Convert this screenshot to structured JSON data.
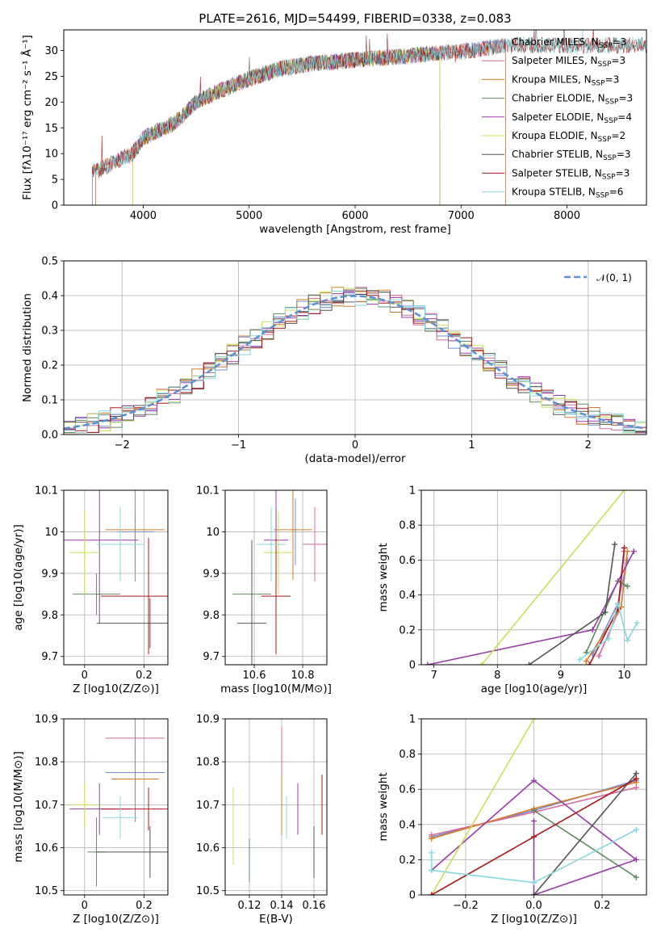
{
  "chart_data": [
    {
      "id": "spectrum",
      "type": "line",
      "title": "PLATE=2616, MJD=54499, FIBERID=0338, z=0.083",
      "xlabel": "wavelength [Angstrom, rest frame]",
      "ylabel": "Flux [fλ10⁻¹⁷ erg cm⁻² s⁻¹ Å⁻¹]",
      "xlim": [
        3250,
        8750
      ],
      "ylim": [
        0,
        34
      ],
      "xticks": [
        4000,
        5000,
        6000,
        7000,
        8000
      ],
      "yticks": [
        0,
        5,
        10,
        15,
        20,
        25,
        30
      ],
      "grid": false,
      "legend_position": "top-right",
      "continuum": {
        "x": [
          3550,
          3700,
          3900,
          4000,
          4100,
          4300,
          4500,
          4700,
          5000,
          5300,
          5600,
          5900,
          6200,
          6500,
          6800,
          7100,
          7400
        ],
        "y": [
          6.5,
          8,
          10,
          13,
          14,
          16,
          20,
          22,
          24.5,
          26.5,
          27.5,
          28,
          28.5,
          29,
          29.5,
          30,
          31
        ]
      },
      "series": [
        {
          "name": "Chabrier MILES, N_SSP=3",
          "color": "#6f8fd8",
          "range": [
            3550,
            7420
          ]
        },
        {
          "name": "Salpeter MILES, N_SSP=3",
          "color": "#d66a9e",
          "range": [
            3550,
            7420
          ]
        },
        {
          "name": "Kroupa MILES, N_SSP=3",
          "color": "#d47b2a",
          "range": [
            3550,
            7420
          ]
        },
        {
          "name": "Chabrier ELODIE, N_SSP=3",
          "color": "#5f8a5f",
          "range": [
            3900,
            6800
          ]
        },
        {
          "name": "Salpeter ELODIE, N_SSP=4",
          "color": "#9a3aa8",
          "range": [
            3900,
            6800
          ]
        },
        {
          "name": "Kroupa ELODIE, N_SSP=2",
          "color": "#c8df5a",
          "range": [
            3900,
            6800
          ]
        },
        {
          "name": "Chabrier STELIB, N_SSP=3",
          "color": "#555555",
          "range": [
            3520,
            8750
          ]
        },
        {
          "name": "Salpeter STELIB, N_SSP=3",
          "color": "#a8181d",
          "range": [
            3520,
            8750
          ]
        },
        {
          "name": "Kroupa STELIB, N_SSP=6",
          "color": "#86d8de",
          "range": [
            3520,
            8750
          ]
        }
      ]
    },
    {
      "id": "residuals",
      "type": "histogram",
      "xlabel": "(data-model)/error",
      "ylabel": "Normed distribution",
      "xlim": [
        -2.5,
        2.5
      ],
      "ylim": [
        0,
        0.5
      ],
      "xticks": [
        -2,
        -1,
        0,
        1,
        2
      ],
      "xtick_labels": [
        "−2",
        "−1",
        "0",
        "1",
        "2"
      ],
      "yticks": [
        0.0,
        0.1,
        0.2,
        0.3,
        0.4,
        0.5
      ],
      "ytick_labels": [
        "0.0",
        "0.1",
        "0.2",
        "0.3",
        "0.4",
        "0.5"
      ],
      "grid": true,
      "bin_width": 0.1,
      "reference": {
        "label": "𝒩(0, 1)",
        "color": "#5a8fd6",
        "mean": 0,
        "sigma": 1
      },
      "legend_position": "top-right"
    },
    {
      "id": "age-vs-Z",
      "type": "errorbar",
      "xlabel": "Z [log10(Z/Z⊙)]",
      "ylabel": "age [log10(age/yr)]",
      "xlim": [
        -0.07,
        0.28
      ],
      "ylim": [
        9.68,
        10.1
      ],
      "xticks": [
        0.0,
        0.2
      ],
      "yticks": [
        9.7,
        9.8,
        9.9,
        10.0,
        10.1
      ],
      "points": [
        {
          "series": 0,
          "x": 0.17,
          "y": 10.0,
          "xerr": 0.06,
          "yerr": 0.05
        },
        {
          "series": 1,
          "x": 0.17,
          "y": 9.96,
          "xerr": 0.0,
          "yerr": 0.08
        },
        {
          "series": 2,
          "x": 0.17,
          "y": 10.005,
          "xerr": 0.1,
          "yerr": 0.1
        },
        {
          "series": 3,
          "x": 0.04,
          "y": 9.85,
          "xerr": 0.08,
          "yerr": 0.05
        },
        {
          "series": 4,
          "x": 0.05,
          "y": 9.98,
          "xerr": 0.13,
          "yerr": 0.2
        },
        {
          "series": 5,
          "x": 0.0,
          "y": 9.95,
          "xerr": 0.05,
          "yerr": 0.1
        },
        {
          "series": 6,
          "x": 0.22,
          "y": 9.78,
          "xerr": 0.18,
          "yerr": 0.06
        },
        {
          "series": 7,
          "x": 0.215,
          "y": 9.845,
          "xerr": 0.16,
          "yerr": 0.14
        },
        {
          "series": 8,
          "x": 0.12,
          "y": 9.97,
          "xerr": 0.08,
          "yerr": 0.09
        }
      ]
    },
    {
      "id": "age-vs-mass",
      "type": "errorbar",
      "xlabel": "mass [log10(M/M⊙)]",
      "xlim": [
        10.48,
        10.9
      ],
      "ylim": [
        9.68,
        10.1
      ],
      "xticks": [
        10.6,
        10.8
      ],
      "yticks": [
        9.7,
        9.8,
        9.9,
        10.0,
        10.1
      ],
      "points": [
        {
          "series": 0,
          "x": 10.77,
          "y": 10.0,
          "xerr": 0.0,
          "yerr": 0.08
        },
        {
          "series": 1,
          "x": 10.85,
          "y": 9.97,
          "xerr": 0.05,
          "yerr": 0.09
        },
        {
          "series": 2,
          "x": 10.76,
          "y": 10.005,
          "xerr": 0.08,
          "yerr": 0.12
        },
        {
          "series": 3,
          "x": 10.59,
          "y": 9.85,
          "xerr": 0.08,
          "yerr": 0.05
        },
        {
          "series": 4,
          "x": 10.69,
          "y": 9.98,
          "xerr": 0.05,
          "yerr": 0.2
        },
        {
          "series": 5,
          "x": 10.7,
          "y": 9.95,
          "xerr": 0.06,
          "yerr": 0.1
        },
        {
          "series": 6,
          "x": 10.59,
          "y": 9.78,
          "xerr": 0.06,
          "yerr": 0.2
        },
        {
          "series": 7,
          "x": 10.69,
          "y": 9.845,
          "xerr": 0.06,
          "yerr": 0.14
        },
        {
          "series": 8,
          "x": 10.67,
          "y": 9.97,
          "xerr": 0.06,
          "yerr": 0.09
        }
      ]
    },
    {
      "id": "weight-vs-age",
      "type": "line",
      "xlabel": "age [log10(age/yr)]",
      "ylabel": "mass weight",
      "xlim": [
        6.8,
        10.35
      ],
      "ylim": [
        0,
        1.0
      ],
      "xticks": [
        7,
        8,
        9,
        10
      ],
      "yticks": [
        0.0,
        0.2,
        0.4,
        0.6,
        0.8,
        1.0
      ],
      "series": [
        {
          "series": 0,
          "x": [
            9.5,
            9.9,
            10.05
          ],
          "y": [
            0.06,
            0.35,
            0.6
          ]
        },
        {
          "series": 1,
          "x": [
            9.6,
            9.9,
            10.0
          ],
          "y": [
            0.05,
            0.3,
            0.65
          ]
        },
        {
          "series": 2,
          "x": [
            9.4,
            9.95,
            10.05
          ],
          "y": [
            0.02,
            0.33,
            0.65
          ]
        },
        {
          "series": 3,
          "x": [
            9.4,
            9.9,
            10.05
          ],
          "y": [
            0.07,
            0.48,
            0.45
          ]
        },
        {
          "series": 4,
          "x": [
            6.9,
            9.5,
            10.15
          ],
          "y": [
            0.0,
            0.2,
            0.65
          ]
        },
        {
          "series": 5,
          "x": [
            7.75,
            10.0
          ],
          "y": [
            0.0,
            1.0
          ]
        },
        {
          "series": 6,
          "x": [
            8.5,
            9.7,
            9.85
          ],
          "y": [
            0.0,
            0.3,
            0.69
          ]
        },
        {
          "series": 7,
          "x": [
            9.45,
            9.9,
            10.0
          ],
          "y": [
            0.0,
            0.32,
            0.67
          ]
        },
        {
          "series": 8,
          "x": [
            9.3,
            9.75,
            9.9,
            10.05,
            10.2
          ],
          "y": [
            0.03,
            0.15,
            0.35,
            0.14,
            0.24
          ]
        }
      ]
    },
    {
      "id": "mass-vs-Z",
      "type": "errorbar",
      "xlabel": "Z [log10(Z/Z⊙)]",
      "ylabel": "mass [log10(M/M⊙)]",
      "xlim": [
        -0.07,
        0.28
      ],
      "ylim": [
        10.49,
        10.9
      ],
      "xticks": [
        0.0,
        0.2
      ],
      "yticks": [
        10.5,
        10.6,
        10.7,
        10.8,
        10.9
      ],
      "points": [
        {
          "series": 0,
          "x": 0.17,
          "y": 10.775,
          "xerr": 0.1,
          "yerr": 0.06
        },
        {
          "series": 1,
          "x": 0.17,
          "y": 10.855,
          "xerr": 0.1,
          "yerr": 0.05
        },
        {
          "series": 2,
          "x": 0.17,
          "y": 10.76,
          "xerr": 0.08,
          "yerr": 0.1
        },
        {
          "series": 3,
          "x": 0.04,
          "y": 10.59,
          "xerr": 0.03,
          "yerr": 0.08
        },
        {
          "series": 4,
          "x": 0.05,
          "y": 10.69,
          "xerr": 0.1,
          "yerr": 0.06
        },
        {
          "series": 5,
          "x": 0.0,
          "y": 10.7,
          "xerr": 0.05,
          "yerr": 0.05
        },
        {
          "series": 6,
          "x": 0.22,
          "y": 10.59,
          "xerr": 0.18,
          "yerr": 0.06
        },
        {
          "series": 7,
          "x": 0.215,
          "y": 10.69,
          "xerr": 0.16,
          "yerr": 0.05
        },
        {
          "series": 8,
          "x": 0.12,
          "y": 10.67,
          "xerr": 0.06,
          "yerr": 0.05
        }
      ]
    },
    {
      "id": "mass-vs-EBV",
      "type": "errorbar",
      "xlabel": "E(B-V)",
      "xlim": [
        0.105,
        0.168
      ],
      "ylim": [
        10.49,
        10.9
      ],
      "xticks": [
        0.12,
        0.14,
        0.16
      ],
      "yticks": [
        10.5,
        10.6,
        10.7,
        10.8,
        10.9
      ],
      "points": [
        {
          "series": 1,
          "x": 0.14,
          "y": 10.8,
          "xerr": 0,
          "yerr": 0.08
        },
        {
          "series": 2,
          "x": 0.14,
          "y": 10.7,
          "xerr": 0,
          "yerr": 0.07
        },
        {
          "series": 3,
          "x": 0.12,
          "y": 10.57,
          "xerr": 0,
          "yerr": 0.05
        },
        {
          "series": 4,
          "x": 0.15,
          "y": 10.69,
          "xerr": 0,
          "yerr": 0.06
        },
        {
          "series": 5,
          "x": 0.11,
          "y": 10.65,
          "xerr": 0,
          "yerr": 0.09
        },
        {
          "series": 6,
          "x": 0.16,
          "y": 10.59,
          "xerr": 0,
          "yerr": 0.06
        },
        {
          "series": 7,
          "x": 0.165,
          "y": 10.7,
          "xerr": 0,
          "yerr": 0.07
        },
        {
          "series": 8,
          "x": 0.143,
          "y": 10.67,
          "xerr": 0,
          "yerr": 0.05
        }
      ]
    },
    {
      "id": "weight-vs-Z",
      "type": "line",
      "xlabel": "Z [log10(Z/Z⊙)]",
      "ylabel": "mass weight",
      "xlim": [
        -0.33,
        0.33
      ],
      "ylim": [
        0,
        1.0
      ],
      "xticks": [
        -0.2,
        0.0,
        0.2
      ],
      "xtick_labels": [
        "−0.2",
        "0.0",
        "0.2"
      ],
      "yticks": [
        0.0,
        0.2,
        0.4,
        0.6,
        0.8,
        1.0
      ],
      "series": [
        {
          "series": 0,
          "x": [
            -0.3,
            0.0,
            0.3
          ],
          "y": [
            0.33,
            0.48,
            0.65
          ]
        },
        {
          "series": 1,
          "x": [
            -0.3,
            0.0,
            0.3
          ],
          "y": [
            0.34,
            0.47,
            0.61
          ]
        },
        {
          "series": 2,
          "x": [
            -0.3,
            0.0,
            0.3
          ],
          "y": [
            0.32,
            0.49,
            0.64
          ]
        },
        {
          "series": 3,
          "x": [
            0.0,
            0.3
          ],
          "y": [
            0.48,
            0.1
          ]
        },
        {
          "series": 4,
          "x": [
            -0.3,
            0.0,
            0.3,
            0.0,
            0.0
          ],
          "y": [
            0.14,
            0.65,
            0.2,
            0.0,
            0.42
          ]
        },
        {
          "series": 5,
          "x": [
            -0.3,
            0.0
          ],
          "y": [
            0.0,
            1.0
          ]
        },
        {
          "series": 6,
          "x": [
            0.0,
            0.3
          ],
          "y": [
            0.0,
            0.69
          ]
        },
        {
          "series": 7,
          "x": [
            -0.3,
            0.0,
            0.3
          ],
          "y": [
            0.0,
            0.33,
            0.66
          ]
        },
        {
          "series": 8,
          "x": [
            -0.3,
            -0.3,
            0.0,
            0.3
          ],
          "y": [
            0.24,
            0.14,
            0.07,
            0.37
          ]
        }
      ]
    }
  ]
}
